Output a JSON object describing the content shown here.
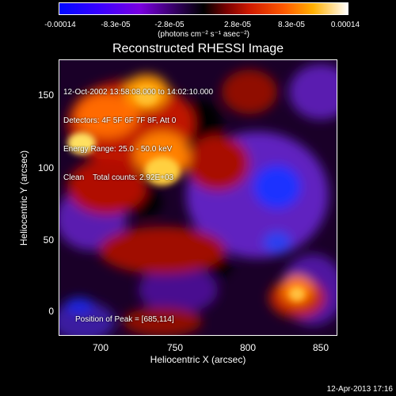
{
  "colorbar": {
    "ticks": [
      "-0.00014",
      "-8.3e-05",
      "-2.8e-05",
      "2.8e-05",
      "8.3e-05",
      "0.00014"
    ],
    "units": "(photons cm⁻² s⁻¹ asec⁻²)"
  },
  "plot": {
    "title": "Reconstructed RHESSI Image",
    "xlabel": "Heliocentric X (arcsec)",
    "ylabel": "Heliocentric Y (arcsec)",
    "xticks": [
      "700",
      "750",
      "800",
      "850"
    ],
    "yticks": [
      "0",
      "50",
      "100",
      "150"
    ],
    "annotation_lines": [
      "12-Oct-2002 13:58:08.000 to 14:02:10.000",
      "Detectors: 4F 5F 6F 7F 8F, Att 0",
      "Energy Range: 25.0 - 50.0 keV",
      "Clean    Total counts: 2.92E+03"
    ],
    "peak_label": "Position of Peak = [685,114]"
  },
  "footer": {
    "timestamp": "12-Apr-2013 17:16"
  }
}
